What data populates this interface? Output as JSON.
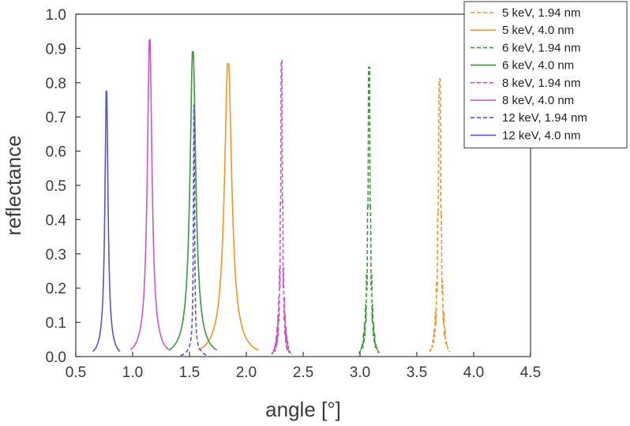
{
  "chart_data": {
    "type": "line",
    "xlabel": "angle [°]",
    "ylabel": "reflectance",
    "xlim": [
      0.5,
      4.5
    ],
    "ylim": [
      0.0,
      1.0
    ],
    "x_ticks": [
      "0.5",
      "1.0",
      "1.5",
      "2.0",
      "2.5",
      "3.0",
      "3.5",
      "4.0",
      "4.5"
    ],
    "y_ticks": [
      "0.0",
      "0.1",
      "0.2",
      "0.3",
      "0.4",
      "0.5",
      "0.6",
      "0.7",
      "0.8",
      "0.9",
      "1.0"
    ],
    "legend_position": "top-right",
    "grid": false,
    "series": [
      {
        "name": "5 keV, 1.94 nm",
        "color": "#F7931E",
        "dash": true,
        "peak_angle": 3.7,
        "peak_reflectance": 0.81,
        "width": 0.012,
        "fringes": true
      },
      {
        "name": "5 keV, 4.0 nm",
        "color": "#F7931E",
        "dash": false,
        "peak_angle": 1.84,
        "peak_reflectance": 0.855,
        "width": 0.038,
        "fringes": false
      },
      {
        "name": "6 keV, 1.94 nm",
        "color": "#3A9A3A",
        "dash": true,
        "peak_angle": 3.08,
        "peak_reflectance": 0.845,
        "width": 0.01,
        "fringes": true
      },
      {
        "name": "6 keV, 4.0 nm",
        "color": "#3A9A3A",
        "dash": false,
        "peak_angle": 1.53,
        "peak_reflectance": 0.89,
        "width": 0.03,
        "fringes": false
      },
      {
        "name": "8 keV, 1.94 nm",
        "color": "#CC55CC",
        "dash": true,
        "peak_angle": 2.31,
        "peak_reflectance": 0.865,
        "width": 0.008,
        "fringes": true
      },
      {
        "name": "8 keV, 4.0 nm",
        "color": "#CC55CC",
        "dash": false,
        "peak_angle": 1.15,
        "peak_reflectance": 0.925,
        "width": 0.024,
        "fringes": false
      },
      {
        "name": "12 keV, 1.94 nm",
        "color": "#5555CC",
        "dash": true,
        "peak_angle": 1.54,
        "peak_reflectance": 0.735,
        "width": 0.006,
        "fringes": false
      },
      {
        "name": "12 keV, 4.0 nm",
        "color": "#5555CC",
        "dash": false,
        "peak_angle": 0.77,
        "peak_reflectance": 0.775,
        "width": 0.016,
        "fringes": false
      }
    ]
  }
}
